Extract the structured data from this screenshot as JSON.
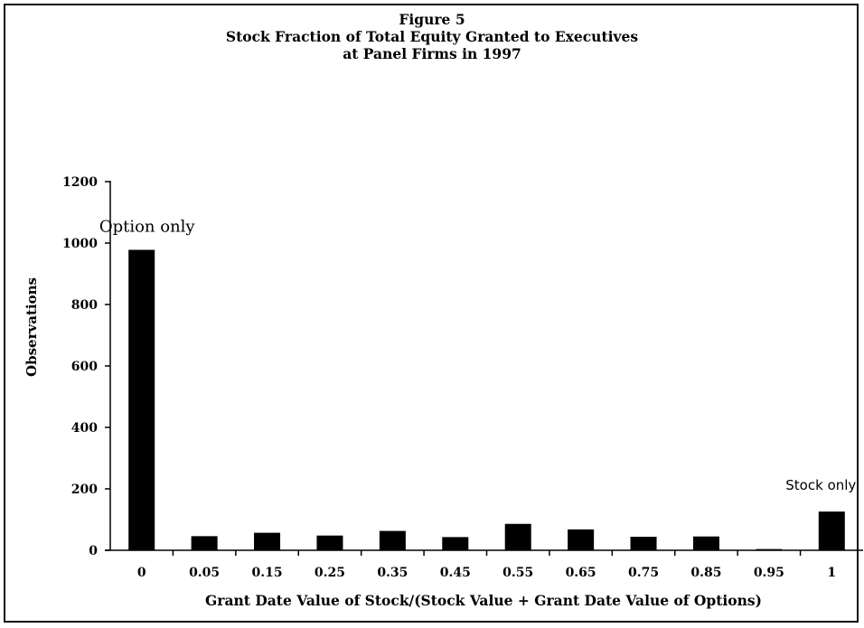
{
  "chart_data": {
    "type": "bar",
    "title_lines": [
      "Figure 5",
      "Stock Fraction of Total Equity Granted to Executives",
      "at Panel Firms in 1997"
    ],
    "xlabel": "Grant Date Value of Stock/(Stock Value + Grant Date Value of Options)",
    "ylabel": "Observations",
    "ylim": [
      0,
      1200
    ],
    "yticks": [
      0,
      200,
      400,
      600,
      800,
      1000,
      1200
    ],
    "categories": [
      "0",
      "0.05",
      "0.15",
      "0.25",
      "0.35",
      "0.45",
      "0.55",
      "0.65",
      "0.75",
      "0.85",
      "0.95",
      "1"
    ],
    "values": [
      978,
      46,
      57,
      48,
      63,
      43,
      86,
      68,
      44,
      45,
      4,
      126
    ],
    "grid": false,
    "legend": "none",
    "bar_color": "#000000",
    "annotations": [
      {
        "text": "Option only",
        "category": "0"
      },
      {
        "text": "Stock only",
        "category": "1"
      }
    ]
  }
}
